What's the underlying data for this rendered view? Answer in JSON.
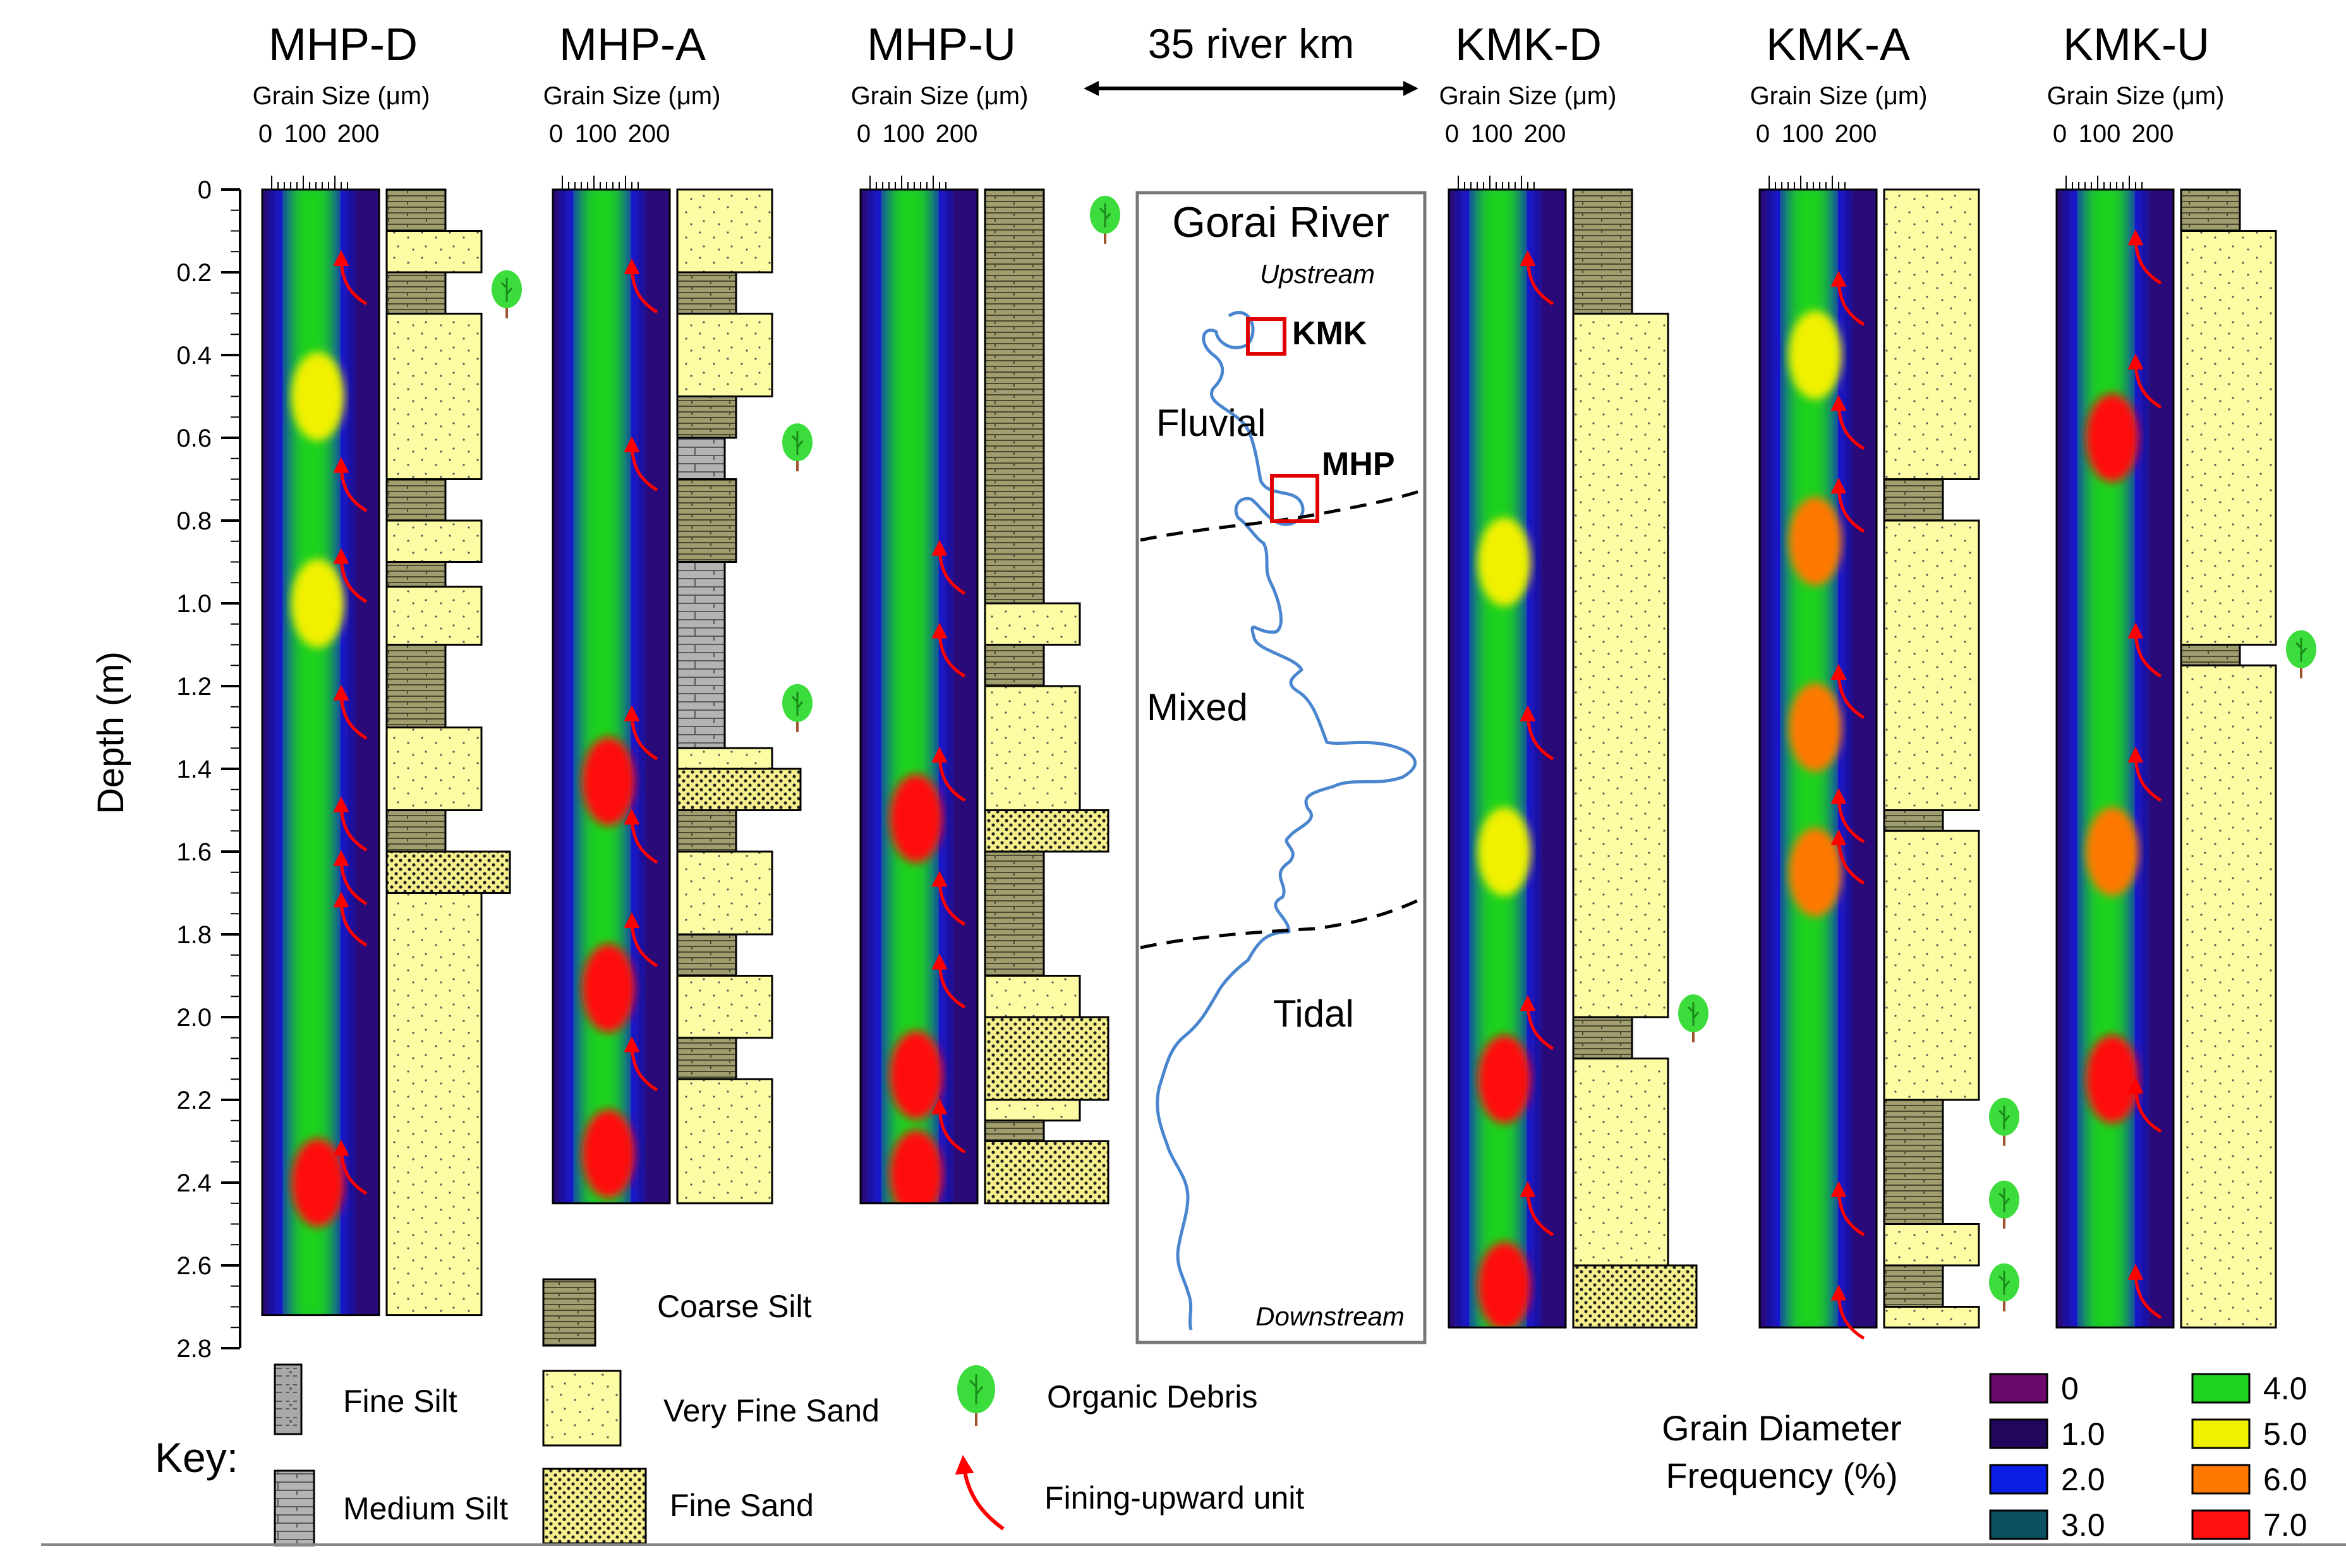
{
  "scale_bar": "35 river km",
  "axis": {
    "ylabel": "Depth (m)",
    "depth_ticks": [
      "0",
      "0.2",
      "0.4",
      "0.6",
      "0.8",
      "1.0",
      "1.2",
      "1.4",
      "1.6",
      "1.8",
      "2.0",
      "2.2",
      "2.4",
      "2.6",
      "2.8"
    ],
    "grain_label": "Grain Size (μm)",
    "grain_ticks": [
      "0",
      "100",
      "200"
    ]
  },
  "cores": [
    {
      "name": "MHP-D",
      "depth_m": 2.72,
      "organic_debris_m": [
        0.25
      ],
      "fining_upward_m": [
        0.2,
        0.7,
        0.92,
        1.25,
        1.52,
        1.65,
        1.75,
        2.35
      ],
      "peaks": [
        {
          "depth_m": 0.5,
          "pct": 5.4
        },
        {
          "depth_m": 1.0,
          "pct": 5.2
        },
        {
          "depth_m": 2.4,
          "pct": 6.8
        }
      ],
      "lithology": [
        {
          "top": 0,
          "bottom": 0.1,
          "type": "coarse-silt"
        },
        {
          "top": 0.1,
          "bottom": 0.2,
          "type": "very-fine-sand"
        },
        {
          "top": 0.2,
          "bottom": 0.3,
          "type": "coarse-silt"
        },
        {
          "top": 0.3,
          "bottom": 0.7,
          "type": "very-fine-sand"
        },
        {
          "top": 0.7,
          "bottom": 0.8,
          "type": "coarse-silt"
        },
        {
          "top": 0.8,
          "bottom": 0.9,
          "type": "very-fine-sand"
        },
        {
          "top": 0.9,
          "bottom": 0.96,
          "type": "coarse-silt"
        },
        {
          "top": 0.96,
          "bottom": 1.1,
          "type": "very-fine-sand"
        },
        {
          "top": 1.1,
          "bottom": 1.3,
          "type": "coarse-silt"
        },
        {
          "top": 1.3,
          "bottom": 1.5,
          "type": "very-fine-sand"
        },
        {
          "top": 1.5,
          "bottom": 1.6,
          "type": "coarse-silt"
        },
        {
          "top": 1.6,
          "bottom": 1.7,
          "type": "fine-sand"
        },
        {
          "top": 1.7,
          "bottom": 2.72,
          "type": "very-fine-sand"
        }
      ]
    },
    {
      "name": "MHP-A",
      "depth_m": 2.45,
      "organic_debris_m": [
        0.62,
        1.25
      ],
      "fining_upward_m": [
        0.22,
        0.65,
        1.3,
        1.55,
        1.8,
        2.1
      ],
      "peaks": [
        {
          "depth_m": 1.43,
          "pct": 7.0
        },
        {
          "depth_m": 1.93,
          "pct": 7.0
        },
        {
          "depth_m": 2.33,
          "pct": 7.0
        }
      ],
      "lithology": [
        {
          "top": 0,
          "bottom": 0.2,
          "type": "very-fine-sand"
        },
        {
          "top": 0.2,
          "bottom": 0.3,
          "type": "coarse-silt"
        },
        {
          "top": 0.3,
          "bottom": 0.5,
          "type": "very-fine-sand"
        },
        {
          "top": 0.5,
          "bottom": 0.6,
          "type": "coarse-silt"
        },
        {
          "top": 0.6,
          "bottom": 0.7,
          "type": "medium-silt"
        },
        {
          "top": 0.7,
          "bottom": 0.9,
          "type": "coarse-silt"
        },
        {
          "top": 0.9,
          "bottom": 1.35,
          "type": "medium-silt"
        },
        {
          "top": 1.35,
          "bottom": 1.4,
          "type": "very-fine-sand"
        },
        {
          "top": 1.4,
          "bottom": 1.5,
          "type": "fine-sand"
        },
        {
          "top": 1.5,
          "bottom": 1.6,
          "type": "coarse-silt"
        },
        {
          "top": 1.6,
          "bottom": 1.8,
          "type": "very-fine-sand"
        },
        {
          "top": 1.8,
          "bottom": 1.9,
          "type": "coarse-silt"
        },
        {
          "top": 1.9,
          "bottom": 2.05,
          "type": "very-fine-sand"
        },
        {
          "top": 2.05,
          "bottom": 2.15,
          "type": "coarse-silt"
        },
        {
          "top": 2.15,
          "bottom": 2.45,
          "type": "very-fine-sand"
        }
      ]
    },
    {
      "name": "MHP-U",
      "depth_m": 2.45,
      "organic_debris_m": [
        0.07
      ],
      "fining_upward_m": [
        0.9,
        1.1,
        1.4,
        1.7,
        1.9,
        2.25
      ],
      "peaks": [
        {
          "depth_m": 1.52,
          "pct": 7.0
        },
        {
          "depth_m": 2.14,
          "pct": 7.0
        },
        {
          "depth_m": 2.38,
          "pct": 7.0
        }
      ],
      "lithology": [
        {
          "top": 0,
          "bottom": 1.0,
          "type": "coarse-silt"
        },
        {
          "top": 1.0,
          "bottom": 1.1,
          "type": "very-fine-sand"
        },
        {
          "top": 1.1,
          "bottom": 1.2,
          "type": "coarse-silt"
        },
        {
          "top": 1.2,
          "bottom": 1.5,
          "type": "very-fine-sand"
        },
        {
          "top": 1.5,
          "bottom": 1.6,
          "type": "fine-sand"
        },
        {
          "top": 1.6,
          "bottom": 1.9,
          "type": "coarse-silt"
        },
        {
          "top": 1.9,
          "bottom": 2.0,
          "type": "very-fine-sand"
        },
        {
          "top": 2.0,
          "bottom": 2.2,
          "type": "fine-sand"
        },
        {
          "top": 2.2,
          "bottom": 2.25,
          "type": "very-fine-sand"
        },
        {
          "top": 2.25,
          "bottom": 2.3,
          "type": "coarse-silt"
        },
        {
          "top": 2.3,
          "bottom": 2.45,
          "type": "fine-sand"
        }
      ]
    },
    {
      "name": "KMK-D",
      "depth_m": 2.75,
      "organic_debris_m": [
        2.0
      ],
      "fining_upward_m": [
        0.2,
        1.3,
        2.0,
        2.45
      ],
      "peaks": [
        {
          "depth_m": 0.9,
          "pct": 5.2
        },
        {
          "depth_m": 1.6,
          "pct": 5.0
        },
        {
          "depth_m": 2.15,
          "pct": 7.0
        },
        {
          "depth_m": 2.65,
          "pct": 7.0
        }
      ],
      "lithology": [
        {
          "top": 0,
          "bottom": 0.3,
          "type": "coarse-silt"
        },
        {
          "top": 0.3,
          "bottom": 2.0,
          "type": "very-fine-sand"
        },
        {
          "top": 2.0,
          "bottom": 2.1,
          "type": "coarse-silt"
        },
        {
          "top": 2.1,
          "bottom": 2.6,
          "type": "very-fine-sand"
        },
        {
          "top": 2.6,
          "bottom": 2.75,
          "type": "fine-sand"
        }
      ]
    },
    {
      "name": "KMK-A",
      "depth_m": 2.75,
      "organic_debris_m": [
        2.25,
        2.45,
        2.65
      ],
      "fining_upward_m": [
        0.25,
        0.55,
        0.75,
        1.2,
        1.5,
        1.6,
        2.45,
        2.7
      ],
      "peaks": [
        {
          "depth_m": 0.4,
          "pct": 5.4
        },
        {
          "depth_m": 0.85,
          "pct": 6.0
        },
        {
          "depth_m": 1.3,
          "pct": 5.8
        },
        {
          "depth_m": 1.65,
          "pct": 6.2
        }
      ],
      "lithology": [
        {
          "top": 0,
          "bottom": 0.7,
          "type": "very-fine-sand"
        },
        {
          "top": 0.7,
          "bottom": 0.8,
          "type": "coarse-silt"
        },
        {
          "top": 0.8,
          "bottom": 1.5,
          "type": "very-fine-sand"
        },
        {
          "top": 1.5,
          "bottom": 1.55,
          "type": "coarse-silt"
        },
        {
          "top": 1.55,
          "bottom": 2.2,
          "type": "very-fine-sand"
        },
        {
          "top": 2.2,
          "bottom": 2.5,
          "type": "coarse-silt"
        },
        {
          "top": 2.5,
          "bottom": 2.6,
          "type": "very-fine-sand"
        },
        {
          "top": 2.6,
          "bottom": 2.7,
          "type": "coarse-silt"
        },
        {
          "top": 2.7,
          "bottom": 2.75,
          "type": "very-fine-sand"
        }
      ]
    },
    {
      "name": "KMK-U",
      "depth_m": 2.75,
      "organic_debris_m": [
        1.12
      ],
      "fining_upward_m": [
        0.15,
        0.45,
        1.1,
        1.4,
        2.2,
        2.65
      ],
      "peaks": [
        {
          "depth_m": 0.6,
          "pct": 6.6
        },
        {
          "depth_m": 1.6,
          "pct": 6.2
        },
        {
          "depth_m": 2.15,
          "pct": 6.6
        }
      ],
      "lithology": [
        {
          "top": 0,
          "bottom": 0.1,
          "type": "coarse-silt"
        },
        {
          "top": 0.1,
          "bottom": 1.1,
          "type": "very-fine-sand"
        },
        {
          "top": 1.1,
          "bottom": 1.15,
          "type": "coarse-silt"
        },
        {
          "top": 1.15,
          "bottom": 2.75,
          "type": "very-fine-sand"
        }
      ]
    }
  ],
  "map": {
    "title": "Gorai River",
    "upstream": "Upstream",
    "downstream": "Downstream",
    "zones": [
      "Fluvial",
      "Mixed",
      "Tidal"
    ],
    "sites": [
      "KMK",
      "MHP"
    ]
  },
  "key": {
    "title": "Key:",
    "items": [
      {
        "type": "fine-silt",
        "label": "Fine Silt"
      },
      {
        "type": "medium-silt",
        "label": "Medium Silt"
      },
      {
        "type": "coarse-silt",
        "label": "Coarse Silt"
      },
      {
        "type": "very-fine-sand",
        "label": "Very Fine Sand"
      },
      {
        "type": "fine-sand",
        "label": "Fine Sand"
      },
      {
        "type": "organic-debris",
        "label": "Organic Debris"
      },
      {
        "type": "fining-upward",
        "label": "Fining-upward unit"
      }
    ]
  },
  "colorbar": {
    "title_line1": "Grain Diameter",
    "title_line2": "Frequency (%)",
    "entries": [
      {
        "label": "0",
        "color": "#6b0a6b"
      },
      {
        "label": "1.0",
        "color": "#22065e"
      },
      {
        "label": "2.0",
        "color": "#0a1ee6"
      },
      {
        "label": "3.0",
        "color": "#0a5060"
      },
      {
        "label": "4.0",
        "color": "#1ed21e"
      },
      {
        "label": "5.0",
        "color": "#f0f000"
      },
      {
        "label": "6.0",
        "color": "#ff7800"
      },
      {
        "label": "7.0",
        "color": "#ff1010"
      }
    ]
  },
  "colors": {
    "lithology_fill": {
      "coarse-silt": "#a09d6e",
      "very-fine-sand": "#fdfca4",
      "fine-sand": "#f5f08c",
      "medium-silt": "#b3b3b3",
      "fine-silt": "#a8a8a8"
    },
    "arrow": "#ff0000",
    "map_box": "#e00000",
    "river": "#4a86cf"
  }
}
